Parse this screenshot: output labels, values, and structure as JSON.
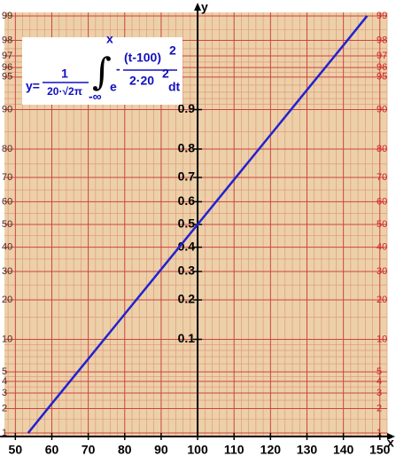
{
  "chart_data": {
    "type": "line",
    "formula": {
      "lhs": "y=",
      "numerator": "1",
      "denominator": "20·√2π",
      "lower": "-∞",
      "upper": "x",
      "base": "e",
      "exp_sign": "-",
      "exp_numerator": "(t-100)",
      "exp_numerator_power": "2",
      "exp_denominator": "2·20",
      "exp_denominator_power": "2",
      "differential": "dt"
    },
    "xlabel": "x",
    "ylabel": "y",
    "xlim": [
      47,
      152
    ],
    "xticks": [
      50,
      60,
      70,
      80,
      90,
      100,
      110,
      120,
      130,
      140,
      150
    ],
    "xminor": [
      48,
      52,
      54,
      56,
      58,
      62,
      64,
      66,
      68,
      72,
      74,
      76,
      78,
      82,
      84,
      86,
      88,
      92,
      94,
      96,
      98,
      102,
      104,
      106,
      108,
      112,
      114,
      116,
      118,
      122,
      124,
      126,
      128,
      132,
      134,
      136,
      138,
      142,
      144,
      146,
      148,
      152
    ],
    "ylim": [
      0.9,
      99.1
    ],
    "yscale": "probability",
    "yticks": [
      1,
      2,
      3,
      4,
      5,
      10,
      20,
      30,
      40,
      50,
      60,
      70,
      80,
      90,
      95,
      96,
      97,
      98,
      99
    ],
    "yminor": [
      1.5,
      2.5,
      3.5,
      4.5,
      6,
      7,
      8,
      9,
      15,
      25,
      35,
      45,
      55,
      65,
      75,
      85,
      91,
      92,
      93,
      94,
      95.5,
      96.5,
      97.5,
      98.5
    ],
    "inner_yticks": [
      {
        "value": 10,
        "label": "0.1"
      },
      {
        "value": 20,
        "label": "0.2"
      },
      {
        "value": 30,
        "label": "0.3"
      },
      {
        "value": 40,
        "label": "0.4"
      },
      {
        "value": 50,
        "label": "0.5"
      },
      {
        "value": 60,
        "label": "0.6"
      },
      {
        "value": 70,
        "label": "0.7"
      },
      {
        "value": 80,
        "label": "0.8"
      },
      {
        "value": 90,
        "label": "0.9"
      }
    ],
    "grid": true,
    "background": "#ecd0a8",
    "right_tick_color": "#cc2222",
    "series": [
      {
        "color": "#2222d0",
        "x": [
          53.5,
          60,
          70,
          80,
          90,
          100,
          110,
          120,
          130,
          140,
          146.5
        ],
        "values": [
          1,
          2.28,
          6.68,
          15.87,
          30.85,
          50,
          69.15,
          84.13,
          93.32,
          97.72,
          99
        ]
      }
    ]
  }
}
